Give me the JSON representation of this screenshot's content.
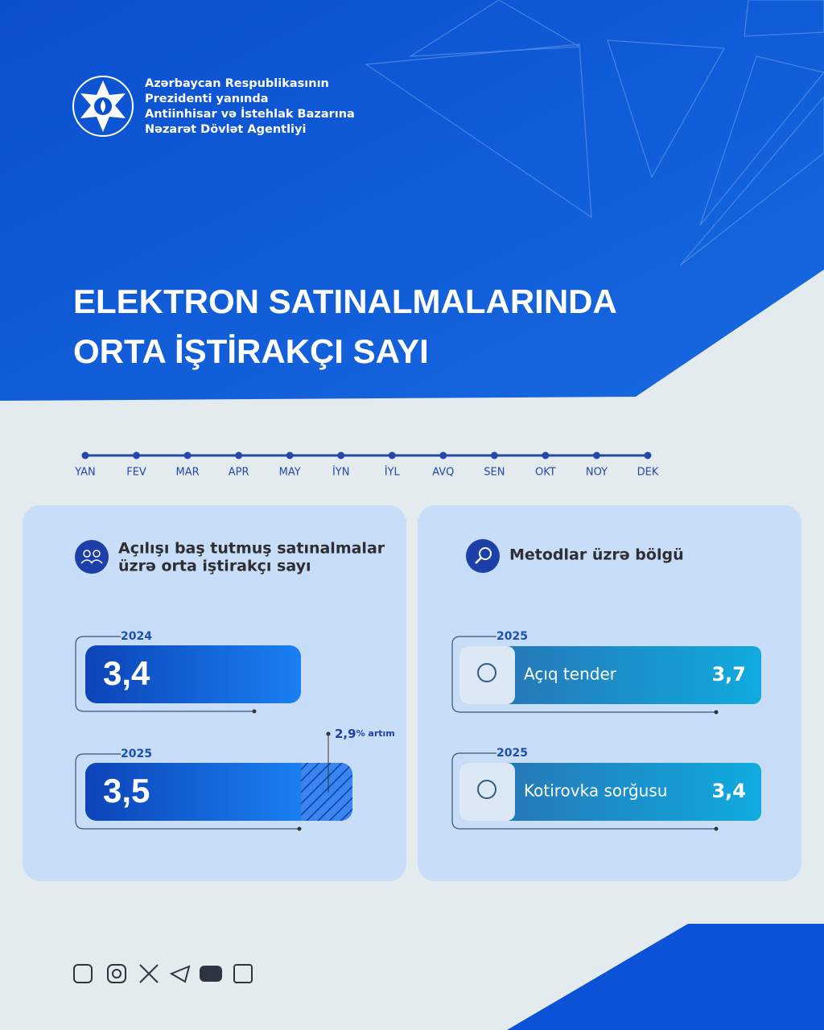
{
  "header": {
    "organization": [
      "Azərbaycan Respublikasının",
      "Prezidenti yanında",
      "Antiinhisar və İstehlak Bazarına",
      "Nəzarət Dövlət Agentliyi"
    ],
    "title": [
      "ELEKTRON SATINALMALARINDA",
      "ORTA İŞTİRAKÇI SAYI"
    ]
  },
  "timeline": {
    "months": [
      "YAN",
      "FEV",
      "MAR",
      "APR",
      "MAY",
      "İYN",
      "İYL",
      "AVQ",
      "SEN",
      "OKT",
      "NOY",
      "DEK"
    ]
  },
  "panels": [
    {
      "title": [
        "Açılışı baş tutmuş satınalmalar",
        "üzrə orta iştirakçı sayı"
      ],
      "bars": [
        {
          "year": "2024",
          "value": "3,4"
        },
        {
          "year": "2025",
          "value": "3,5"
        }
      ],
      "growth": {
        "value": "2,9",
        "unit": "% artım"
      }
    },
    {
      "title": [
        "Metodlar üzrə bölgü"
      ],
      "items": [
        {
          "year": "2025",
          "label": "Açıq tender",
          "value": "3,7"
        },
        {
          "year": "2025",
          "label": "Kotirovka sorğusu",
          "value": "3,4"
        }
      ]
    }
  ]
}
